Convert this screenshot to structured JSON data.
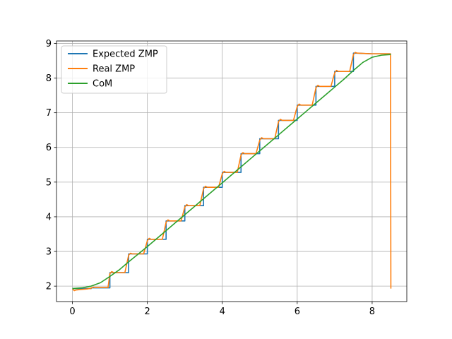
{
  "chart_data": {
    "type": "line",
    "title": "",
    "xlabel": "",
    "ylabel": "",
    "xlim": [
      -0.425,
      8.925
    ],
    "ylim": [
      1.555,
      9.07
    ],
    "xticks": [
      0,
      2,
      4,
      6,
      8
    ],
    "yticks": [
      2,
      3,
      4,
      5,
      6,
      7,
      8,
      9
    ],
    "grid": true,
    "legend": "top-left",
    "series": [
      {
        "name": "Expected ZMP",
        "color": "#1f77b4",
        "x": [
          0,
          0.5,
          0.5,
          1.0,
          1.0,
          1.5,
          1.5,
          2.0,
          2.0,
          2.5,
          2.5,
          3.0,
          3.0,
          3.5,
          3.5,
          4.0,
          4.0,
          4.5,
          4.5,
          5.0,
          5.0,
          5.5,
          5.5,
          6.0,
          6.0,
          6.5,
          6.5,
          7.0,
          7.0,
          7.5,
          7.5,
          8.0,
          8.5
        ],
        "y": [
          1.93,
          1.93,
          1.95,
          1.95,
          2.39,
          2.39,
          2.93,
          2.93,
          3.35,
          3.35,
          3.88,
          3.88,
          4.32,
          4.32,
          4.85,
          4.85,
          5.28,
          5.28,
          5.82,
          5.82,
          6.25,
          6.25,
          6.78,
          6.78,
          7.22,
          7.22,
          7.76,
          7.76,
          8.19,
          8.19,
          8.72,
          8.7,
          8.7
        ]
      },
      {
        "name": "Real ZMP",
        "color": "#ff7f0e",
        "x": [
          0,
          0.05,
          0.1,
          0.2,
          0.4,
          0.5,
          0.55,
          0.6,
          0.8,
          0.95,
          1.0,
          1.05,
          1.1,
          1.4,
          1.5,
          1.55,
          1.6,
          1.9,
          2.0,
          2.05,
          2.1,
          2.4,
          2.5,
          2.55,
          2.6,
          2.9,
          3.0,
          3.05,
          3.1,
          3.4,
          3.5,
          3.55,
          3.6,
          3.9,
          4.0,
          4.05,
          4.1,
          4.4,
          4.5,
          4.55,
          4.6,
          4.9,
          5.0,
          5.05,
          5.1,
          5.4,
          5.5,
          5.55,
          5.6,
          5.9,
          6.0,
          6.05,
          6.1,
          6.4,
          6.5,
          6.55,
          6.6,
          6.9,
          7.0,
          7.05,
          7.1,
          7.4,
          7.5,
          7.55,
          7.6,
          8.0,
          8.48,
          8.49,
          8.5
        ],
        "y": [
          1.92,
          1.87,
          1.89,
          1.9,
          1.92,
          1.94,
          1.97,
          1.96,
          1.96,
          1.96,
          2.36,
          2.42,
          2.39,
          2.39,
          2.89,
          2.95,
          2.93,
          2.93,
          3.31,
          3.38,
          3.35,
          3.35,
          3.84,
          3.91,
          3.88,
          3.88,
          4.28,
          4.35,
          4.32,
          4.32,
          4.81,
          4.88,
          4.85,
          4.85,
          5.24,
          5.31,
          5.28,
          5.28,
          5.78,
          5.85,
          5.82,
          5.82,
          6.21,
          6.28,
          6.25,
          6.25,
          6.74,
          6.81,
          6.78,
          6.78,
          7.18,
          7.25,
          7.22,
          7.22,
          7.72,
          7.79,
          7.76,
          7.76,
          8.15,
          8.22,
          8.19,
          8.19,
          8.68,
          8.74,
          8.72,
          8.7,
          8.7,
          8.7,
          1.93
        ]
      },
      {
        "name": "CoM",
        "color": "#2ca02c",
        "x": [
          0,
          0.25,
          0.5,
          0.75,
          1.0,
          1.25,
          1.5,
          1.75,
          2.0,
          2.25,
          2.5,
          2.75,
          3.0,
          3.25,
          3.5,
          3.75,
          4.0,
          4.25,
          4.5,
          4.75,
          5.0,
          5.25,
          5.5,
          5.75,
          6.0,
          6.25,
          6.5,
          6.75,
          7.0,
          7.25,
          7.5,
          7.75,
          8.0,
          8.25,
          8.5
        ],
        "y": [
          1.93,
          1.95,
          2.0,
          2.1,
          2.28,
          2.47,
          2.7,
          2.92,
          3.14,
          3.37,
          3.6,
          3.83,
          4.06,
          4.29,
          4.52,
          4.75,
          4.98,
          5.21,
          5.44,
          5.67,
          5.9,
          6.13,
          6.36,
          6.59,
          6.82,
          7.05,
          7.28,
          7.51,
          7.74,
          7.97,
          8.22,
          8.45,
          8.6,
          8.66,
          8.68
        ]
      }
    ]
  }
}
